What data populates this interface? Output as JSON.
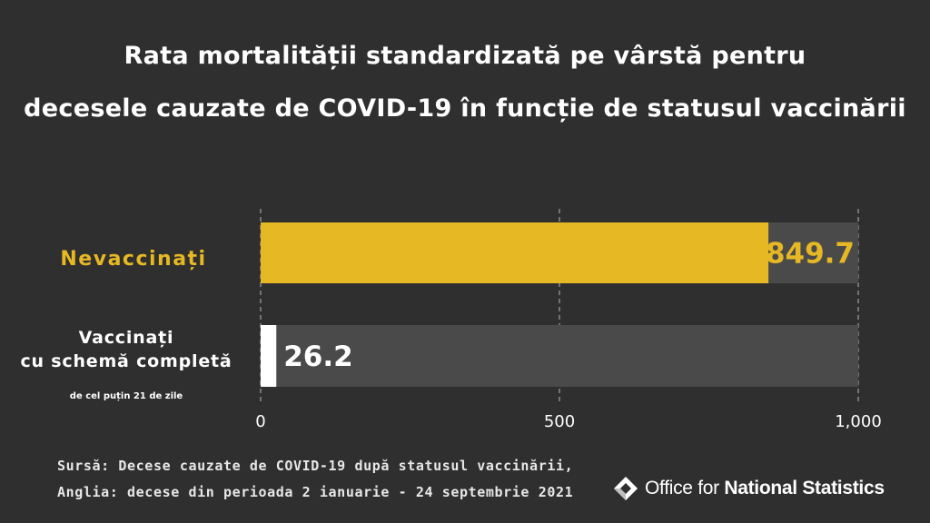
{
  "title": {
    "line1": "Rata mortalității standardizată pe vârstă pentru",
    "line2": "decesele cauzate de COVID-19 în funcție de statusul vaccinării"
  },
  "colors": {
    "background": "#2f2f2f",
    "track": "#4a4a4a",
    "unvaccinated": "#e6b823",
    "vaccinated": "#ffffff"
  },
  "chart_data": {
    "type": "bar",
    "orientation": "horizontal",
    "categories": [
      "Nevaccinați",
      "Vaccinați cu schemă completă"
    ],
    "category_sublabels": [
      "",
      "de cel puțin 21 de zile"
    ],
    "values": [
      849.7,
      26.2
    ],
    "value_labels": [
      "849.7",
      "26.2"
    ],
    "xlim": [
      0,
      1000
    ],
    "xticks": [
      0,
      500,
      1000
    ],
    "xtick_labels": [
      "0",
      "500",
      "1,000"
    ],
    "grid": true
  },
  "labels": {
    "unvaccinated": "Nevaccinați",
    "vaccinated_line1": "Vaccinați",
    "vaccinated_line2": "cu schemă completă",
    "vaccinated_note": "de cel puțin 21 de zile"
  },
  "source": {
    "line1": "Sursă: Decese cauzate de COVID-19 după statusul vaccinării,",
    "line2": "Anglia: decese din perioada 2 ianuarie - 24 septembrie 2021"
  },
  "logo": {
    "text_regular": "Office for ",
    "text_bold": "National Statistics",
    "icon": "ons-logo-icon"
  }
}
